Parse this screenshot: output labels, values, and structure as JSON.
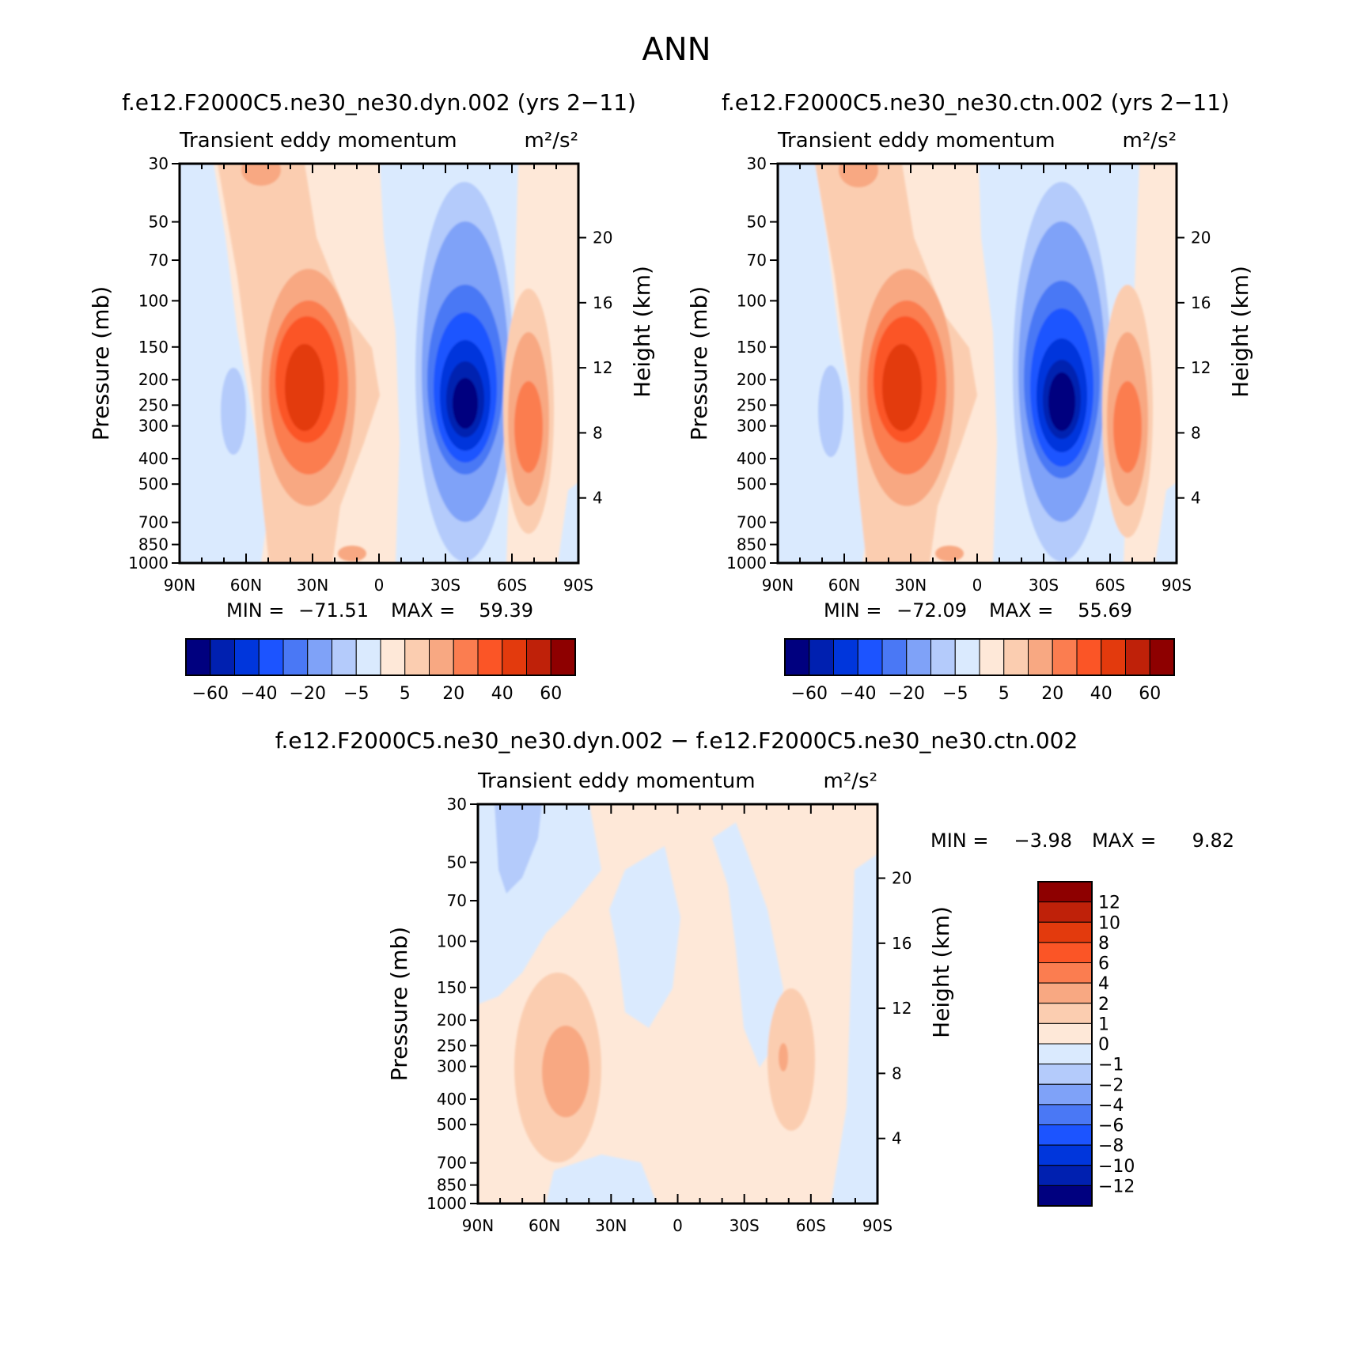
{
  "page_title": "ANN",
  "chart_data": [
    {
      "id": "panel1",
      "type": "heatmap",
      "run_title": "f.e12.F2000C5.ne30_ne30.dyn.002 (yrs 2−11)",
      "subtitle": "Transient eddy momentum",
      "units": "m²/s²",
      "ylabel": "Pressure (mb)",
      "ylabel_right": "Height (km)",
      "x_ticks": [
        "90N",
        "60N",
        "30N",
        "0",
        "30S",
        "60S",
        "90S"
      ],
      "xlim": [
        90,
        -90
      ],
      "y_ticks": [
        30,
        50,
        70,
        100,
        150,
        200,
        250,
        300,
        400,
        500,
        700,
        850,
        1000
      ],
      "ylim": [
        1000,
        30
      ],
      "height_ticks": [
        4,
        8,
        12,
        16,
        20
      ],
      "stats": {
        "min_label": "MIN =",
        "min": "−71.51",
        "max_label": "MAX =",
        "max": "59.39"
      },
      "levels": [
        "−60",
        "−40",
        "−20",
        "−5",
        "5",
        "20",
        "40",
        "60"
      ],
      "colors": [
        "#00007f",
        "#0020b0",
        "#0036dc",
        "#1c54ff",
        "#4a78f5",
        "#7fa2f8",
        "#b4cbfb",
        "#daeafe",
        "#fee8d8",
        "#fbcdb0",
        "#f8a882",
        "#fb7d50",
        "#fb5526",
        "#e33a0d",
        "#bf2109",
        "#8e0000"
      ],
      "features": [
        {
          "name": "sh-jet-negative",
          "lat": -38,
          "p": 250,
          "peak": -71.51
        },
        {
          "name": "nh-jet-positive",
          "lat": 32,
          "p": 220,
          "peak": 50
        },
        {
          "name": "sh-high-lat-positive",
          "lat": -68,
          "p": 290,
          "peak": 35
        }
      ]
    },
    {
      "id": "panel2",
      "type": "heatmap",
      "run_title": "f.e12.F2000C5.ne30_ne30.ctn.002 (yrs 2−11)",
      "subtitle": "Transient eddy momentum",
      "units": "m²/s²",
      "ylabel": "Pressure (mb)",
      "ylabel_right": "Height (km)",
      "x_ticks": [
        "90N",
        "60N",
        "30N",
        "0",
        "30S",
        "60S",
        "90S"
      ],
      "xlim": [
        90,
        -90
      ],
      "y_ticks": [
        30,
        50,
        70,
        100,
        150,
        200,
        250,
        300,
        400,
        500,
        700,
        850,
        1000
      ],
      "ylim": [
        1000,
        30
      ],
      "height_ticks": [
        4,
        8,
        12,
        16,
        20
      ],
      "stats": {
        "min_label": "MIN =",
        "min": "−72.09",
        "max_label": "MAX =",
        "max": "55.69"
      },
      "levels": [
        "−60",
        "−40",
        "−20",
        "−5",
        "5",
        "20",
        "40",
        "60"
      ],
      "colors": [
        "#00007f",
        "#0020b0",
        "#0036dc",
        "#1c54ff",
        "#4a78f5",
        "#7fa2f8",
        "#b4cbfb",
        "#daeafe",
        "#fee8d8",
        "#fbcdb0",
        "#f8a882",
        "#fb7d50",
        "#fb5526",
        "#e33a0d",
        "#bf2109",
        "#8e0000"
      ],
      "features": [
        {
          "name": "sh-jet-negative",
          "lat": -38,
          "p": 250,
          "peak": -72.09
        },
        {
          "name": "nh-jet-positive",
          "lat": 32,
          "p": 220,
          "peak": 48
        },
        {
          "name": "sh-high-lat-positive",
          "lat": -68,
          "p": 290,
          "peak": 30
        }
      ]
    },
    {
      "id": "panel3",
      "type": "heatmap",
      "run_title": "f.e12.F2000C5.ne30_ne30.dyn.002 − f.e12.F2000C5.ne30_ne30.ctn.002",
      "subtitle": "Transient eddy momentum",
      "units": "m²/s²",
      "ylabel": "Pressure (mb)",
      "ylabel_right": "Height (km)",
      "x_ticks": [
        "90N",
        "60N",
        "30N",
        "0",
        "30S",
        "60S",
        "90S"
      ],
      "xlim": [
        90,
        -90
      ],
      "y_ticks": [
        30,
        50,
        70,
        100,
        150,
        200,
        250,
        300,
        400,
        500,
        700,
        850,
        1000
      ],
      "ylim": [
        1000,
        30
      ],
      "height_ticks": [
        4,
        8,
        12,
        16,
        20
      ],
      "stats": {
        "min_label": "MIN =",
        "min": "−3.98",
        "max_label": "MAX =",
        "max": "9.82"
      },
      "levels": [
        "12",
        "10",
        "8",
        "6",
        "4",
        "2",
        "1",
        "0",
        "−1",
        "−2",
        "−4",
        "−6",
        "−8",
        "−10",
        "−12"
      ],
      "colors": [
        "#8e0000",
        "#bf2109",
        "#e33a0d",
        "#fb5526",
        "#fb7d50",
        "#f8a882",
        "#fbcdb0",
        "#fee8d8",
        "#daeafe",
        "#b4cbfb",
        "#7fa2f8",
        "#4a78f5",
        "#1c54ff",
        "#0036dc",
        "#0020b0",
        "#00007f"
      ],
      "features": [
        {
          "name": "nh-positive",
          "lat": 52,
          "p": 280,
          "peak": 3
        },
        {
          "name": "sh-positive",
          "lat": -48,
          "p": 270,
          "peak": 3
        },
        {
          "name": "nh-strat-negative",
          "lat": 75,
          "p": 45,
          "peak": -2
        }
      ]
    }
  ]
}
